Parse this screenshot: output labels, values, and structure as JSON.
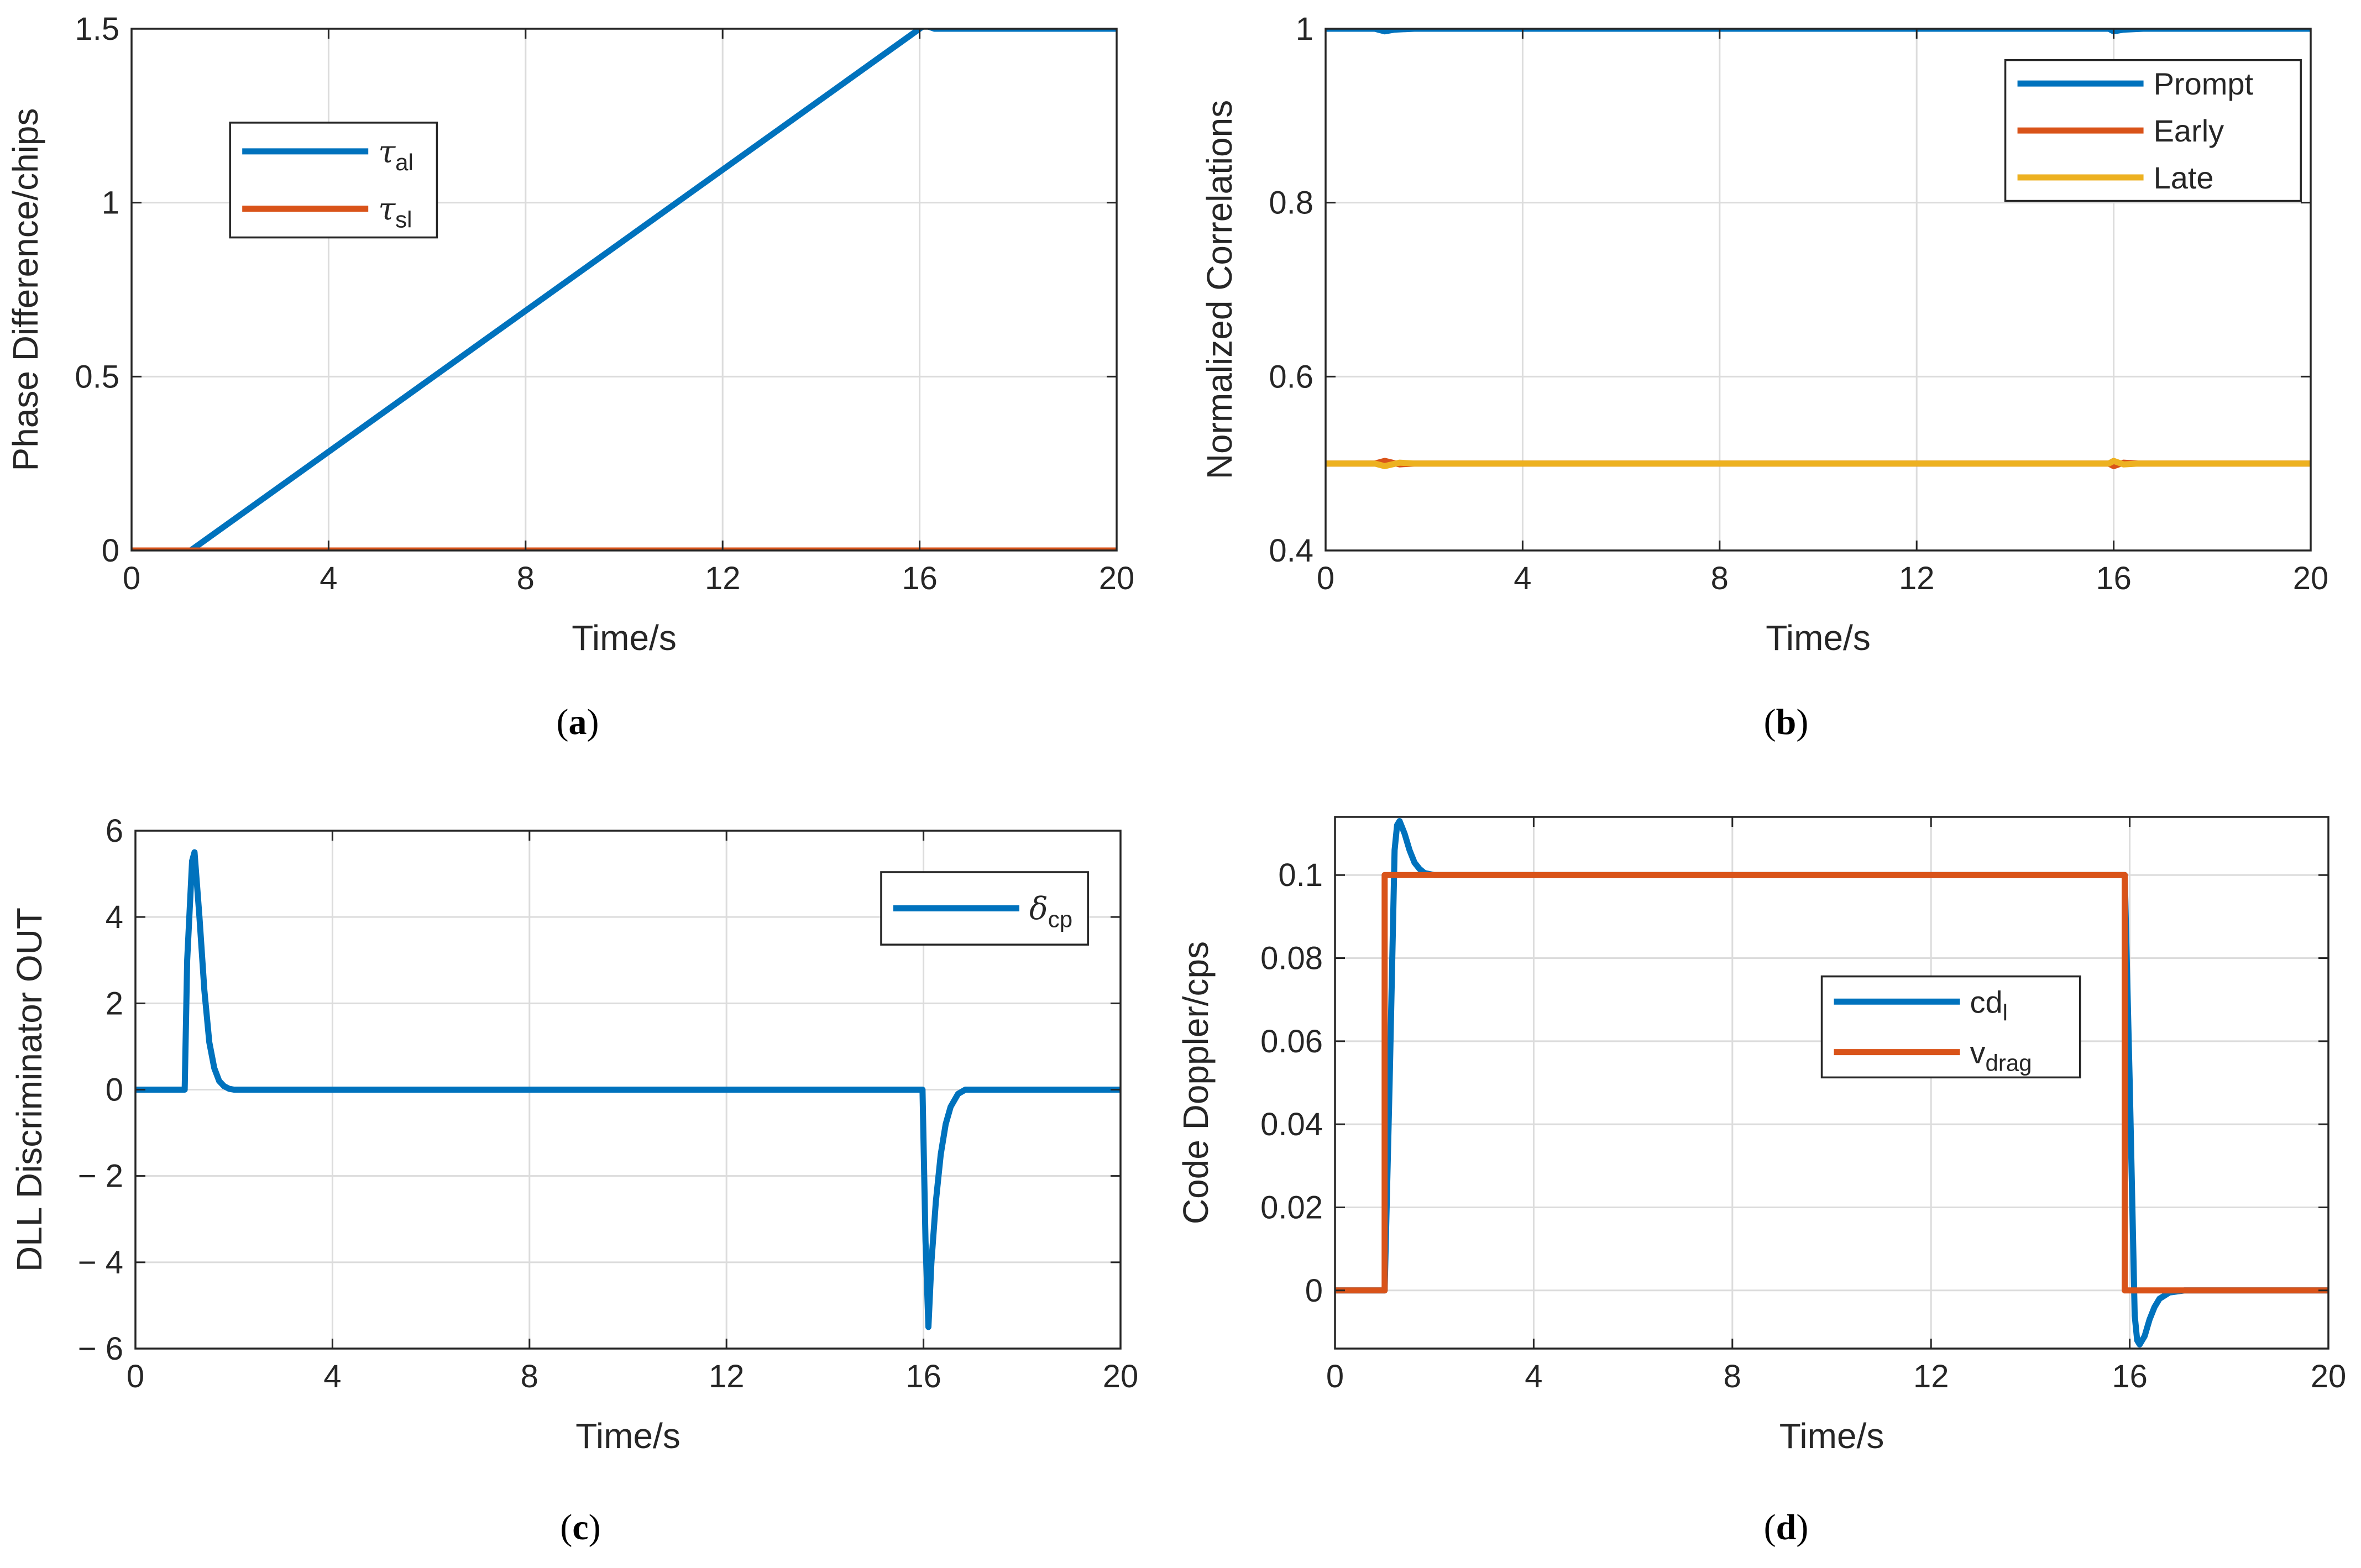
{
  "colors": {
    "blue": "#0072BD",
    "orange": "#D95319",
    "yellow": "#EDB120",
    "grid": "#DCDCDC",
    "axis": "#262626"
  },
  "chart_data": [
    {
      "id": "a",
      "caption": "a",
      "type": "line",
      "xlabel": "Time/s",
      "ylabel": "Phase Difference/chips",
      "xlim": [
        0,
        20
      ],
      "ylim": [
        0,
        1.5
      ],
      "xticks": [
        0,
        4,
        8,
        12,
        16,
        20
      ],
      "yticks": [
        0,
        0.5,
        1,
        1.5
      ],
      "xtick_labels": [
        "0",
        "4",
        "8",
        "12",
        "16",
        "20"
      ],
      "ytick_labels": [
        "0",
        "0.5",
        "1",
        "1.5"
      ],
      "grid": true,
      "legend": {
        "placement": "upper-left inside",
        "box": [
          0.1,
          0.6,
          0.31,
          0.82
        ]
      },
      "series": [
        {
          "name": "τ",
          "sub": "al",
          "color": "blue",
          "x": [
            0,
            1.2,
            16.0,
            16.1,
            16.3,
            20
          ],
          "y": [
            0,
            0,
            1.5,
            1.51,
            1.5,
            1.5
          ]
        },
        {
          "name": "τ",
          "sub": "sl",
          "color": "orange",
          "x": [
            0,
            20
          ],
          "y": [
            0,
            0
          ]
        }
      ]
    },
    {
      "id": "b",
      "caption": "b",
      "type": "line",
      "xlabel": "Time/s",
      "ylabel": "Normalized Correlations",
      "xlim": [
        0,
        20
      ],
      "ylim": [
        0.4,
        1
      ],
      "xticks": [
        0,
        4,
        8,
        12,
        16,
        20
      ],
      "yticks": [
        0.4,
        0.6,
        0.8,
        1
      ],
      "xtick_labels": [
        "0",
        "4",
        "8",
        "12",
        "16",
        "20"
      ],
      "ytick_labels": [
        "0.4",
        "0.6",
        "0.8",
        "1"
      ],
      "grid": true,
      "legend": {
        "placement": "upper-right inside",
        "box": [
          0.69,
          0.67,
          0.99,
          0.94
        ]
      },
      "series": [
        {
          "name": "Prompt",
          "sub": "",
          "color": "blue",
          "x": [
            0,
            1.0,
            1.2,
            1.4,
            1.8,
            15.9,
            16.0,
            16.2,
            16.6,
            20
          ],
          "y": [
            1,
            1,
            0.997,
            0.999,
            1,
            1,
            0.997,
            0.999,
            1,
            1
          ]
        },
        {
          "name": "Early",
          "sub": "",
          "color": "orange",
          "x": [
            0,
            1.0,
            1.2,
            1.5,
            1.8,
            15.9,
            16.0,
            16.2,
            16.5,
            20
          ],
          "y": [
            0.5,
            0.5,
            0.503,
            0.499,
            0.5,
            0.5,
            0.497,
            0.501,
            0.5,
            0.5
          ]
        },
        {
          "name": "Late",
          "sub": "",
          "color": "yellow",
          "x": [
            0,
            1.0,
            1.2,
            1.5,
            1.8,
            15.9,
            16.0,
            16.2,
            16.5,
            20
          ],
          "y": [
            0.5,
            0.5,
            0.497,
            0.501,
            0.5,
            0.5,
            0.503,
            0.499,
            0.5,
            0.5
          ]
        }
      ]
    },
    {
      "id": "c",
      "caption": "c",
      "type": "line",
      "xlabel": "Time/s",
      "ylabel": "DLL Discriminator OUT",
      "xlim": [
        0,
        20
      ],
      "ylim": [
        -6,
        6
      ],
      "xticks": [
        0,
        4,
        8,
        12,
        16,
        20
      ],
      "yticks": [
        -6,
        -4,
        -2,
        0,
        2,
        4,
        6
      ],
      "xtick_labels": [
        "0",
        "4",
        "8",
        "12",
        "16",
        "20"
      ],
      "ytick_labels": [
        "− 6",
        "− 4",
        "− 2",
        "0",
        "2",
        "4",
        "6"
      ],
      "grid": true,
      "legend": {
        "placement": "upper-right inside",
        "box": [
          0.757,
          0.78,
          0.967,
          0.92
        ]
      },
      "series": [
        {
          "name": "δ",
          "sub": "cp",
          "color": "blue",
          "x": [
            0,
            1.0,
            1.05,
            1.15,
            1.2,
            1.3,
            1.4,
            1.5,
            1.6,
            1.7,
            1.8,
            1.9,
            2.0,
            15.98,
            16.04,
            16.1,
            16.16,
            16.25,
            16.35,
            16.45,
            16.55,
            16.7,
            16.85,
            20
          ],
          "y": [
            0,
            0,
            3.0,
            5.3,
            5.5,
            4.0,
            2.3,
            1.1,
            0.5,
            0.2,
            0.08,
            0.02,
            0,
            0,
            -3.5,
            -5.5,
            -4.0,
            -2.6,
            -1.5,
            -0.8,
            -0.4,
            -0.1,
            0,
            0
          ]
        }
      ]
    },
    {
      "id": "d",
      "caption": "d",
      "type": "line",
      "xlabel": "Time/s",
      "ylabel": "Code Doppler/cps",
      "xlim": [
        0,
        20
      ],
      "ylim": [
        -0.014,
        0.114
      ],
      "xticks": [
        0,
        4,
        8,
        12,
        16,
        20
      ],
      "yticks": [
        0,
        0.02,
        0.04,
        0.06,
        0.08,
        0.1
      ],
      "xtick_labels": [
        "0",
        "4",
        "8",
        "12",
        "16",
        "20"
      ],
      "ytick_labels": [
        "0",
        "0.02",
        "0.04",
        "0.06",
        "0.08",
        "0.1"
      ],
      "grid": true,
      "legend": {
        "placement": "center-right inside",
        "box": [
          0.49,
          0.51,
          0.75,
          0.7
        ]
      },
      "series": [
        {
          "name": "cd",
          "sub": "l",
          "color": "blue",
          "x": [
            0,
            1.0,
            1.1,
            1.2,
            1.25,
            1.3,
            1.4,
            1.5,
            1.6,
            1.7,
            1.8,
            2.0,
            2.3,
            15.9,
            16.0,
            16.1,
            16.15,
            16.2,
            16.3,
            16.4,
            16.5,
            16.6,
            16.8,
            17.1,
            20
          ],
          "y": [
            0,
            0,
            0.05,
            0.106,
            0.112,
            0.113,
            0.11,
            0.106,
            0.103,
            0.1015,
            0.1005,
            0.1,
            0.1,
            0.1,
            0.05,
            -0.006,
            -0.012,
            -0.013,
            -0.011,
            -0.007,
            -0.004,
            -0.002,
            -0.0005,
            0,
            0
          ]
        },
        {
          "name": "v",
          "sub": "drag",
          "color": "orange",
          "x": [
            0,
            1.0,
            1.0,
            15.9,
            15.9,
            20
          ],
          "y": [
            0,
            0,
            0.1,
            0.1,
            0,
            0
          ]
        }
      ]
    }
  ]
}
